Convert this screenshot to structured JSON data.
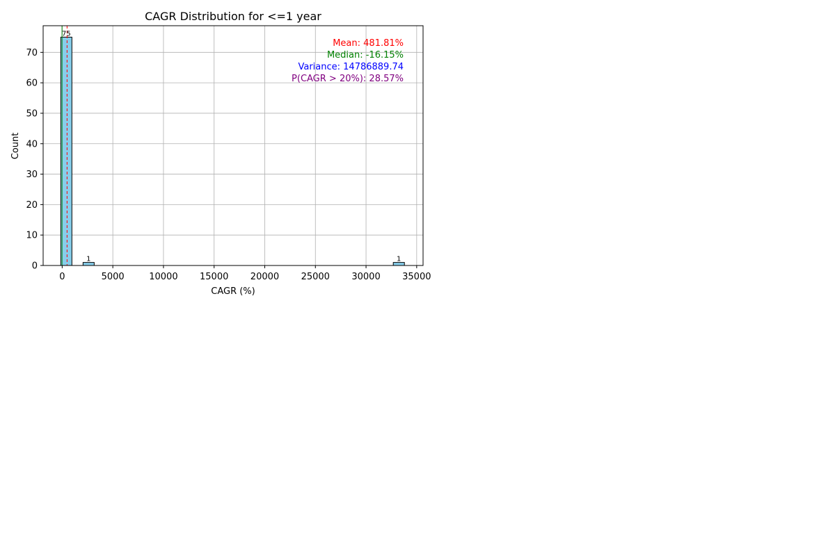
{
  "chart_data": {
    "type": "bar",
    "title": "CAGR Distribution for <=1 year",
    "xlabel": "CAGR (%)",
    "ylabel": "Count",
    "xlim": [
      -1880,
      35630
    ],
    "ylim": [
      0,
      78.75
    ],
    "xticks": [
      0,
      5000,
      10000,
      15000,
      20000,
      25000,
      30000,
      35000
    ],
    "yticks": [
      0,
      10,
      20,
      30,
      40,
      50,
      60,
      70
    ],
    "grid": true,
    "bar_color": "#87CEEB",
    "bar_edge_color": "#000000",
    "bins": [
      {
        "x0": -140,
        "x1": 960,
        "count": 75,
        "label": "75"
      },
      {
        "x0": 2060,
        "x1": 3160,
        "count": 1,
        "label": "1"
      },
      {
        "x0": 32690,
        "x1": 33790,
        "count": 1,
        "label": "1"
      }
    ],
    "lines": [
      {
        "name": "mean",
        "x": 481.81,
        "color": "#ff0000",
        "style": "dashed"
      },
      {
        "name": "median",
        "x": -16.15,
        "color": "#008000",
        "style": "solid"
      }
    ],
    "stats": [
      {
        "key": "mean",
        "text": "Mean: 481.81%",
        "color": "#ff0000"
      },
      {
        "key": "median",
        "text": "Median: -16.15%",
        "color": "#008000"
      },
      {
        "key": "variance",
        "text": "Variance: 14786889.74",
        "color": "#0000ff"
      },
      {
        "key": "prob",
        "text": "P(CAGR > 20%): 28.57%",
        "color": "#800080"
      }
    ],
    "stats_placement": "top-right"
  }
}
